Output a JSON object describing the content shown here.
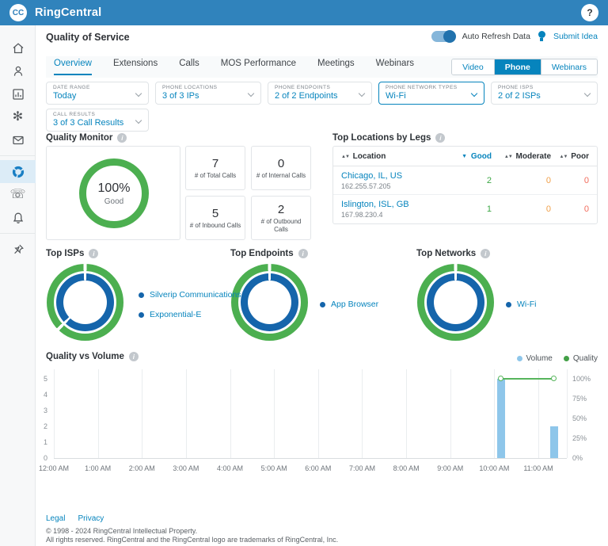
{
  "topbar": {
    "brand": "RingCentral",
    "avatar_initials": "CC",
    "help_label": "?"
  },
  "sidebar": {
    "items": [
      "home",
      "contacts",
      "analytics",
      "apps",
      "messages",
      "quality-of-service",
      "phone-system",
      "notifications",
      "pinned"
    ],
    "active": "quality-of-service"
  },
  "header": {
    "title": "Quality of Service",
    "auto_refresh": "Auto Refresh Data",
    "submit_idea": "Submit Idea"
  },
  "tabs": {
    "items": [
      "Overview",
      "Extensions",
      "Calls",
      "MOS Performance",
      "Meetings",
      "Webinars"
    ],
    "active": "Overview"
  },
  "media_switch": {
    "options": [
      "Video",
      "Phone",
      "Webinars"
    ],
    "active": "Phone"
  },
  "filters": [
    {
      "label": "DATE RANGE",
      "value": "Today",
      "highlighted": false
    },
    {
      "label": "PHONE LOCATIONS",
      "value": "3 of 3 IPs",
      "highlighted": false
    },
    {
      "label": "PHONE ENDPOINTS",
      "value": "2 of 2 Endpoints",
      "highlighted": false
    },
    {
      "label": "PHONE NETWORK TYPES",
      "value": "Wi-Fi",
      "highlighted": true
    },
    {
      "label": "PHONE ISPS",
      "value": "2 of 2 ISPs",
      "highlighted": false
    },
    {
      "label": "CALL RESULTS",
      "value": "3 of 3 Call Results",
      "highlighted": false
    }
  ],
  "quality_monitor": {
    "title": "Quality Monitor",
    "gauge_percent": "100%",
    "gauge_label": "Good",
    "cards": [
      {
        "value": "7",
        "label": "# of Total Calls"
      },
      {
        "value": "0",
        "label": "# of Internal Calls"
      },
      {
        "value": "5",
        "label": "# of Inbound Calls"
      },
      {
        "value": "2",
        "label": "# of Outbound Calls"
      }
    ]
  },
  "top_locations": {
    "title": "Top Locations by Legs",
    "columns": {
      "location": "Location",
      "good": "Good",
      "moderate": "Moderate",
      "poor": "Poor"
    },
    "sorted_by": "Good",
    "rows": [
      {
        "location": "Chicago, IL, US",
        "ip": "162.255.57.205",
        "good": "2",
        "moderate": "0",
        "poor": "0"
      },
      {
        "location": "Islington, ISL, GB",
        "ip": "167.98.230.4",
        "good": "1",
        "moderate": "0",
        "poor": "0"
      }
    ]
  },
  "donuts": [
    {
      "title": "Top ISPs",
      "legend": [
        "Silverip Communications",
        "Exponential-E"
      ],
      "segments": [
        62.5,
        37.5
      ]
    },
    {
      "title": "Top Endpoints",
      "legend": [
        "App Browser"
      ],
      "segments": [
        100
      ]
    },
    {
      "title": "Top Networks",
      "legend": [
        "Wi-Fi"
      ],
      "segments": [
        100
      ]
    }
  ],
  "chart_data": {
    "type": "bar",
    "title": "Quality vs Volume",
    "categories": [
      "12:00 AM",
      "1:00 AM",
      "2:00 AM",
      "3:00 AM",
      "4:00 AM",
      "5:00 AM",
      "6:00 AM",
      "7:00 AM",
      "8:00 AM",
      "9:00 AM",
      "10:00 AM",
      "11:00 AM"
    ],
    "series": [
      {
        "name": "Volume",
        "type": "bar",
        "axis": "left",
        "color": "#8ec6ea",
        "values": [
          0,
          0,
          0,
          0,
          0,
          0,
          0,
          0,
          0,
          0,
          5,
          2
        ]
      },
      {
        "name": "Quality",
        "type": "line",
        "axis": "right",
        "color": "#57b55c",
        "values": [
          null,
          null,
          null,
          null,
          null,
          null,
          null,
          null,
          null,
          null,
          100,
          100
        ]
      }
    ],
    "left_axis": {
      "ticks": [
        0,
        1,
        2,
        3,
        4,
        5
      ],
      "max": 5
    },
    "right_axis": {
      "ticks": [
        "0%",
        "25%",
        "50%",
        "75%",
        "100%"
      ],
      "max": 100
    },
    "legend_position": "top-right",
    "grid": "vertical"
  },
  "footer": {
    "links": [
      "Legal",
      "Privacy"
    ],
    "line1": "© 1998 - 2024 RingCentral Intellectual Property.",
    "line2": "All rights reserved. RingCentral and the RingCentral logo are trademarks of RingCentral, Inc."
  },
  "colors": {
    "topbar": "#3083bc",
    "accent": "#0684bd",
    "donut_outer": "#4caf50",
    "donut_inner": "#1565ab",
    "good": "#3ba744",
    "moderate": "#f0a04a",
    "poor": "#f26c5c",
    "volume_bar": "#8ec6ea",
    "quality_line": "#57b55c"
  }
}
